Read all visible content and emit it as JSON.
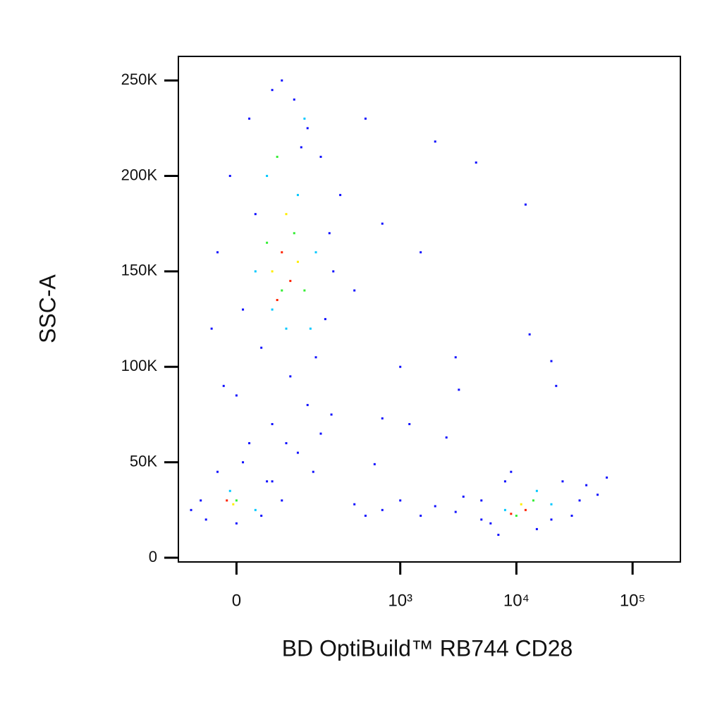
{
  "chart_data": {
    "type": "scatter",
    "x_label": "BD OptiBuild™ RB744 CD28",
    "y_label": "SSC-A",
    "xscale": "biexponential",
    "xlim": [
      -111,
      258000
    ],
    "ylim": [
      -2200,
      262600
    ],
    "xticks": [
      0,
      {
        "value": 1000,
        "label": "10³"
      },
      {
        "value": 10000,
        "label": "10⁴"
      },
      {
        "value": 100000,
        "label": "10⁵"
      }
    ],
    "yticks": [
      0,
      {
        "value": 50000,
        "label": "50K"
      },
      {
        "value": 100000,
        "label": "100K"
      },
      {
        "value": 150000,
        "label": "150K"
      },
      {
        "value": 200000,
        "label": "200K"
      },
      {
        "value": 250000,
        "label": "250K"
      }
    ],
    "grid": false,
    "series": [
      {
        "color": "#1010ff",
        "x": [
          20,
          60,
          110,
          150,
          -10,
          200,
          30,
          240,
          -30,
          260,
          10,
          220,
          40,
          180,
          100,
          0,
          150,
          60,
          200,
          20,
          120,
          250,
          -40,
          300,
          80,
          130,
          -20,
          90,
          170,
          50,
          -60,
          -50,
          0,
          40,
          60,
          -30,
          80,
          -80,
          10,
          400,
          500,
          700,
          1000,
          1500,
          2000,
          4500,
          3000,
          3200,
          12000,
          13000,
          20000,
          22000,
          700,
          1200,
          2500,
          600,
          400,
          700,
          1000,
          1500,
          2000,
          3000,
          3500,
          5000,
          500,
          5000,
          6000,
          8000,
          15000,
          25000,
          35000,
          40000,
          50000,
          7000,
          20000,
          30000,
          60000,
          9000
        ],
        "values": [
          230000,
          245000,
          240000,
          225000,
          200000,
          210000,
          180000,
          170000,
          160000,
          150000,
          130000,
          125000,
          110000,
          105000,
          95000,
          85000,
          80000,
          70000,
          65000,
          60000,
          55000,
          75000,
          120000,
          190000,
          250000,
          215000,
          90000,
          60000,
          45000,
          40000,
          30000,
          20000,
          18000,
          22000,
          40000,
          45000,
          30000,
          25000,
          50000,
          140000,
          230000,
          175000,
          100000,
          160000,
          218000,
          207000,
          105000,
          88000,
          185000,
          117000,
          103000,
          90000,
          73000,
          70000,
          63000,
          49000,
          28000,
          25000,
          30000,
          22000,
          27000,
          24000,
          32000,
          20000,
          22000,
          30000,
          18000,
          40000,
          15000,
          40000,
          30000,
          38000,
          33000,
          12000,
          20000,
          22000,
          42000,
          45000
        ]
      },
      {
        "color": "#00c8ff",
        "x": [
          50,
          120,
          30,
          180,
          90,
          140,
          60,
          160,
          -10,
          30,
          8000,
          15000,
          20000
        ],
        "values": [
          200000,
          190000,
          150000,
          160000,
          120000,
          230000,
          130000,
          120000,
          35000,
          25000,
          25000,
          35000,
          28000
        ]
      },
      {
        "color": "#33ee33",
        "x": [
          70,
          110,
          50,
          140,
          80,
          0,
          10000,
          14000
        ],
        "values": [
          210000,
          170000,
          165000,
          140000,
          140000,
          30000,
          22000,
          30000
        ]
      },
      {
        "color": "#ffee00",
        "x": [
          90,
          60,
          120,
          -5,
          11000
        ],
        "values": [
          180000,
          150000,
          155000,
          28000,
          28000
        ]
      },
      {
        "color": "#ff2200",
        "x": [
          80,
          100,
          70,
          12000,
          9000,
          -15
        ],
        "values": [
          160000,
          145000,
          135000,
          25000,
          23000,
          30000
        ]
      }
    ]
  }
}
